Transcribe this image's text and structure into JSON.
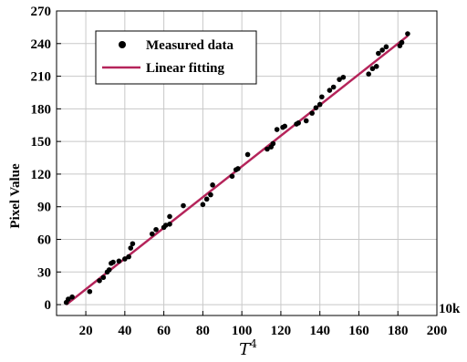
{
  "chart_data": {
    "type": "scatter",
    "xlabel": "T",
    "xlabel_superscript": "4",
    "ylabel": "Pixel Value",
    "x_unit": "10k",
    "xlim": [
      5,
      200
    ],
    "ylim": [
      -10,
      270
    ],
    "xticks": [
      20,
      40,
      60,
      80,
      100,
      120,
      140,
      160,
      180,
      200
    ],
    "yticks": [
      0,
      30,
      60,
      90,
      120,
      150,
      180,
      210,
      240,
      270
    ],
    "grid": true,
    "legend": "top-left",
    "legend_entries": [
      "Measured data",
      "Linear fitting"
    ],
    "series": [
      {
        "name": "Measured data",
        "kind": "scatter",
        "color": "#000000",
        "points": [
          [
            10,
            2
          ],
          [
            11,
            5
          ],
          [
            13,
            7
          ],
          [
            22,
            12
          ],
          [
            27,
            22
          ],
          [
            29,
            25
          ],
          [
            31,
            30
          ],
          [
            32,
            32
          ],
          [
            33,
            38
          ],
          [
            34,
            39
          ],
          [
            37,
            40
          ],
          [
            40,
            42
          ],
          [
            42,
            44
          ],
          [
            43,
            52
          ],
          [
            44,
            56
          ],
          [
            54,
            65
          ],
          [
            56,
            69
          ],
          [
            60,
            71
          ],
          [
            61,
            73
          ],
          [
            63,
            74
          ],
          [
            63,
            81
          ],
          [
            70,
            91
          ],
          [
            80,
            92
          ],
          [
            82,
            97
          ],
          [
            84,
            101
          ],
          [
            85,
            110
          ],
          [
            95,
            118
          ],
          [
            97,
            124
          ],
          [
            98,
            125
          ],
          [
            103,
            138
          ],
          [
            113,
            143
          ],
          [
            115,
            145
          ],
          [
            116,
            148
          ],
          [
            118,
            161
          ],
          [
            121,
            163
          ],
          [
            122,
            164
          ],
          [
            128,
            166
          ],
          [
            129,
            167
          ],
          [
            133,
            169
          ],
          [
            136,
            176
          ],
          [
            138,
            181
          ],
          [
            140,
            184
          ],
          [
            141,
            191
          ],
          [
            145,
            197
          ],
          [
            147,
            200
          ],
          [
            150,
            207
          ],
          [
            152,
            209
          ],
          [
            165,
            212
          ],
          [
            167,
            217
          ],
          [
            169,
            219
          ],
          [
            170,
            231
          ],
          [
            172,
            234
          ],
          [
            174,
            237
          ],
          [
            181,
            238
          ],
          [
            182,
            241
          ],
          [
            185,
            249
          ]
        ]
      },
      {
        "name": "Linear fitting",
        "kind": "line",
        "color": "#b5245a",
        "points": [
          [
            10,
            0
          ],
          [
            185,
            247
          ]
        ]
      }
    ]
  }
}
